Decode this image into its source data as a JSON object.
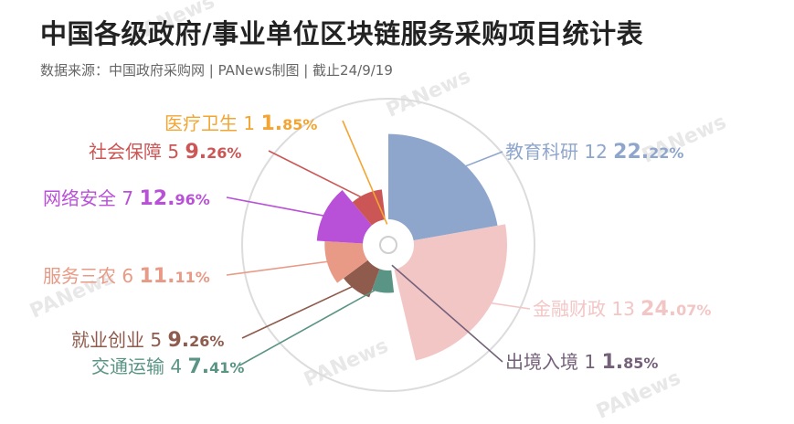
{
  "title": "中国各级政府/事业单位区块链服务采购项目统计表",
  "subtitle": "数据来源：中国政府采购网 | PANews制图 | 截止24/9/19",
  "watermark": "PANews",
  "chart_data": {
    "type": "pie",
    "variant": "nightingale-rose",
    "slices": [
      {
        "label": "教育科研",
        "count": 12,
        "pct_int": "22.",
        "pct_dec": "22%",
        "percent": 22.22,
        "color": "#8fa6cc"
      },
      {
        "label": "金融财政",
        "count": 13,
        "pct_int": "24.",
        "pct_dec": "07%",
        "percent": 24.07,
        "color": "#f3c6c6"
      },
      {
        "label": "出境入境",
        "count": 1,
        "pct_int": "1.",
        "pct_dec": "85%",
        "percent": 1.85,
        "color": "#74617a"
      },
      {
        "label": "交通运输",
        "count": 4,
        "pct_int": "7.",
        "pct_dec": "41%",
        "percent": 7.41,
        "color": "#5a9484"
      },
      {
        "label": "就业创业",
        "count": 5,
        "pct_int": "9.",
        "pct_dec": "26%",
        "percent": 9.26,
        "color": "#8e5b4d"
      },
      {
        "label": "服务三农",
        "count": 6,
        "pct_int": "11.",
        "pct_dec": "11%",
        "percent": 11.11,
        "color": "#e89a86"
      },
      {
        "label": "网络安全",
        "count": 7,
        "pct_int": "12.",
        "pct_dec": "96%",
        "percent": 12.96,
        "color": "#b950d8"
      },
      {
        "label": "社会保障",
        "count": 5,
        "pct_int": "9.",
        "pct_dec": "26%",
        "percent": 9.26,
        "color": "#cc5656"
      },
      {
        "label": "医疗卫生",
        "count": 1,
        "pct_int": "1.",
        "pct_dec": "85%",
        "percent": 1.85,
        "color": "#f2a531"
      }
    ]
  }
}
